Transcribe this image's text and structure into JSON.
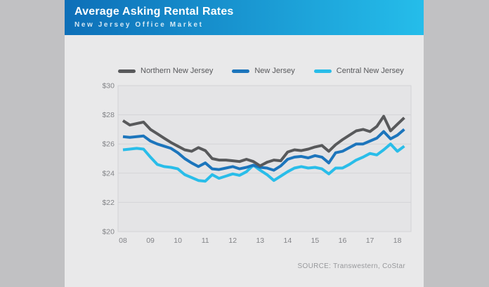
{
  "page": {
    "background_color": "#c1c1c3",
    "card_background_color": "#e9e9ea"
  },
  "header": {
    "title": "Average Asking Rental Rates",
    "subtitle": "New Jersey Office Market",
    "gradient_start": "#0d6fb8",
    "gradient_end": "#25bdea"
  },
  "source": {
    "label": "SOURCE: Transwestern, CoStar"
  },
  "chart_data": {
    "type": "line",
    "title": "Average Asking Rental Rates",
    "subtitle": "New Jersey Office Market",
    "xlabel": "",
    "ylabel": "",
    "x_unit": "year (quarterly points)",
    "x_start": 2008,
    "x_step": 0.25,
    "x_tick_labels": [
      "08",
      "09",
      "10",
      "11",
      "12",
      "13",
      "14",
      "15",
      "16",
      "17",
      "18"
    ],
    "y_ticks": [
      30,
      28,
      26,
      24,
      22,
      20
    ],
    "y_tick_prefix": "$",
    "ylim": [
      20,
      30
    ],
    "grid": true,
    "legend_position": "top",
    "plot_background": "#e4e4e6",
    "grid_color": "#d4d4d7",
    "tick_label_color": "#828387",
    "series": [
      {
        "name": "Northern New Jersey",
        "color": "#58595b",
        "values": [
          27.6,
          27.3,
          27.4,
          27.5,
          27.0,
          26.7,
          26.4,
          26.1,
          25.85,
          25.6,
          25.5,
          25.75,
          25.55,
          25.0,
          24.9,
          24.9,
          24.85,
          24.8,
          24.95,
          24.8,
          24.5,
          24.75,
          24.9,
          24.85,
          25.45,
          25.6,
          25.55,
          25.65,
          25.8,
          25.9,
          25.5,
          25.95,
          26.3,
          26.6,
          26.9,
          27.0,
          26.85,
          27.2,
          27.9,
          26.9,
          27.35,
          27.8
        ]
      },
      {
        "name": "New Jersey",
        "color": "#1c75bc",
        "values": [
          26.5,
          26.45,
          26.5,
          26.55,
          26.2,
          26.0,
          25.85,
          25.7,
          25.4,
          25.0,
          24.7,
          24.45,
          24.7,
          24.3,
          24.25,
          24.35,
          24.45,
          24.3,
          24.4,
          24.55,
          24.4,
          24.35,
          24.2,
          24.5,
          24.95,
          25.1,
          25.15,
          25.05,
          25.2,
          25.1,
          24.7,
          25.4,
          25.5,
          25.75,
          26.0,
          26.0,
          26.2,
          26.4,
          26.85,
          26.35,
          26.6,
          27.0
        ]
      },
      {
        "name": "Central New Jersey",
        "color": "#29bde9",
        "values": [
          25.6,
          25.65,
          25.7,
          25.65,
          25.1,
          24.6,
          24.45,
          24.4,
          24.3,
          23.9,
          23.7,
          23.5,
          23.45,
          23.9,
          23.65,
          23.8,
          23.95,
          23.85,
          24.1,
          24.55,
          24.2,
          23.9,
          23.5,
          23.8,
          24.1,
          24.35,
          24.45,
          24.35,
          24.4,
          24.3,
          23.95,
          24.35,
          24.35,
          24.6,
          24.9,
          25.1,
          25.35,
          25.25,
          25.6,
          26.0,
          25.5,
          25.85
        ]
      }
    ]
  }
}
